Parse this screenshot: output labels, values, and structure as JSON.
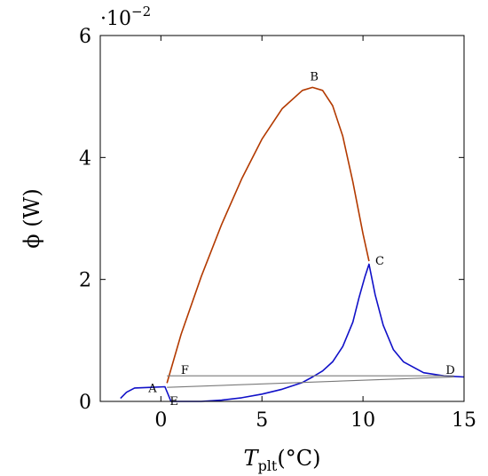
{
  "chart_data": {
    "type": "line",
    "title": "",
    "xlabel": "T",
    "xlabel_sub": "plt",
    "xlabel_unit": "(°C)",
    "ylabel": "ϕ (W)",
    "y_scale_base": "·10",
    "y_scale_exp": "−2",
    "xlim": [
      -3,
      15
    ],
    "ylim": [
      0,
      6
    ],
    "xticks": [
      0,
      5,
      10,
      15
    ],
    "xtick_labels": [
      "0",
      "5",
      "10",
      "15"
    ],
    "yticks": [
      0,
      2,
      4,
      6
    ],
    "ytick_labels": [
      "0",
      "2",
      "4",
      "6"
    ],
    "grid": false,
    "series": [
      {
        "color": "#b33a00",
        "points": [
          [
            0.3,
            0.3
          ],
          [
            1.0,
            1.1
          ],
          [
            2.0,
            2.05
          ],
          [
            3.0,
            2.9
          ],
          [
            4.0,
            3.65
          ],
          [
            5.0,
            4.3
          ],
          [
            6.0,
            4.8
          ],
          [
            7.0,
            5.1
          ],
          [
            7.5,
            5.15
          ],
          [
            8.0,
            5.1
          ],
          [
            8.5,
            4.85
          ],
          [
            9.0,
            4.35
          ],
          [
            9.5,
            3.6
          ],
          [
            10.0,
            2.75
          ],
          [
            10.3,
            2.3
          ]
        ]
      },
      {
        "color": "#1010c8",
        "points": [
          [
            -2.0,
            0.05
          ],
          [
            -1.7,
            0.15
          ],
          [
            -1.3,
            0.22
          ],
          [
            -0.5,
            0.23
          ],
          [
            0.2,
            0.24
          ],
          [
            0.5,
            0.0
          ],
          [
            2.0,
            0.0
          ],
          [
            3.0,
            0.02
          ],
          [
            4.0,
            0.06
          ],
          [
            5.0,
            0.12
          ],
          [
            6.0,
            0.2
          ],
          [
            7.0,
            0.31
          ],
          [
            7.5,
            0.4
          ],
          [
            8.0,
            0.5
          ],
          [
            8.5,
            0.65
          ],
          [
            9.0,
            0.9
          ],
          [
            9.5,
            1.3
          ],
          [
            9.8,
            1.7
          ],
          [
            10.1,
            2.05
          ],
          [
            10.3,
            2.25
          ],
          [
            10.6,
            1.75
          ],
          [
            11.0,
            1.25
          ],
          [
            11.5,
            0.85
          ],
          [
            12.0,
            0.65
          ],
          [
            13.0,
            0.47
          ],
          [
            14.0,
            0.42
          ],
          [
            15.0,
            0.4
          ]
        ]
      },
      {
        "color": "#7a7a7a",
        "points": [
          [
            0.3,
            0.23
          ],
          [
            14.5,
            0.4
          ]
        ]
      },
      {
        "color": "#7a7a7a",
        "points": [
          [
            0.3,
            0.42
          ],
          [
            14.5,
            0.42
          ]
        ]
      }
    ],
    "annotations": [
      {
        "text": "A",
        "x": 0.2,
        "y": 0.24
      },
      {
        "text": "B",
        "x": 7.5,
        "y": 5.15
      },
      {
        "text": "C",
        "x": 10.3,
        "y": 2.3
      },
      {
        "text": "D",
        "x": 14.5,
        "y": 0.41
      },
      {
        "text": "E",
        "x": 0.3,
        "y": 0.23
      },
      {
        "text": "F",
        "x": 0.4,
        "y": 0.42
      }
    ]
  }
}
